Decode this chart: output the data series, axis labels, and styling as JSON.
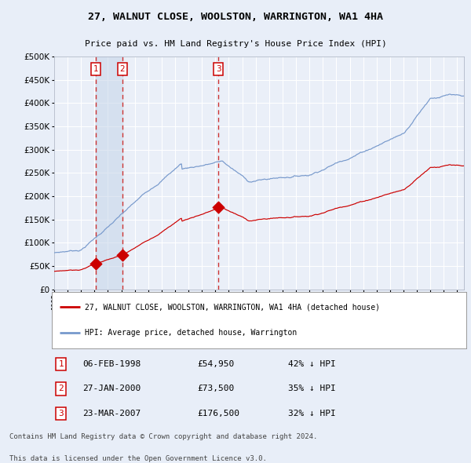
{
  "title": "27, WALNUT CLOSE, WOOLSTON, WARRINGTON, WA1 4HA",
  "subtitle": "Price paid vs. HM Land Registry's House Price Index (HPI)",
  "legend_label_red": "27, WALNUT CLOSE, WOOLSTON, WARRINGTON, WA1 4HA (detached house)",
  "legend_label_blue": "HPI: Average price, detached house, Warrington",
  "transactions": [
    {
      "num": 1,
      "date": "06-FEB-1998",
      "price": 54950,
      "pct": "42% ↓ HPI",
      "year": 1998.1
    },
    {
      "num": 2,
      "date": "27-JAN-2000",
      "price": 73500,
      "pct": "35% ↓ HPI",
      "year": 2000.07
    },
    {
      "num": 3,
      "date": "23-MAR-2007",
      "price": 176500,
      "pct": "32% ↓ HPI",
      "year": 2007.22
    }
  ],
  "footer1": "Contains HM Land Registry data © Crown copyright and database right 2024.",
  "footer2": "This data is licensed under the Open Government Licence v3.0.",
  "bg_color": "#e8eef8",
  "plot_bg": "#eaeff8",
  "red_color": "#cc0000",
  "blue_color": "#7799cc",
  "grid_color": "#ffffff",
  "dashed_color": "#cc3333",
  "ylim": [
    0,
    500000
  ],
  "xlim_start": 1995.0,
  "xlim_end": 2025.5
}
